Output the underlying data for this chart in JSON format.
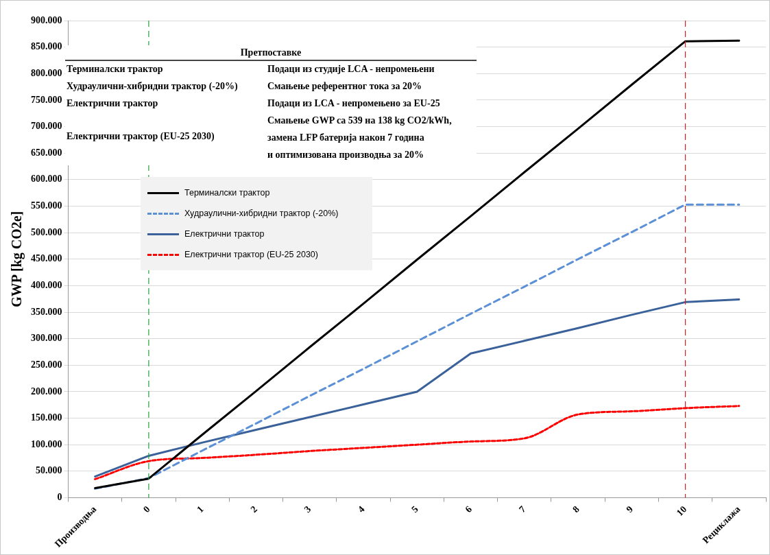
{
  "chart_data": {
    "type": "line",
    "ylabel": "GWP [kg CO2e]",
    "categories": [
      "Производња",
      "0",
      "1",
      "2",
      "3",
      "4",
      "5",
      "6",
      "7",
      "8",
      "9",
      "10",
      "Рециклажа"
    ],
    "series": [
      {
        "name": "Терминалски трактор",
        "color": "#000000",
        "line_style": "solid",
        "values": [
          18000,
          36000,
          119000,
          201000,
          284000,
          366000,
          449000,
          531000,
          614000,
          696000,
          779000,
          861000,
          862000
        ]
      },
      {
        "name": "Худраулични-хибридни трактор (-20%)",
        "color": "#5b8fd6",
        "line_style": "dashed",
        "values": [
          17000,
          37000,
          89000,
          140000,
          192000,
          243000,
          295000,
          347000,
          398000,
          450000,
          501000,
          553000,
          553000
        ]
      },
      {
        "name": "Електрични трактор",
        "color": "#3a6199",
        "line_style": "solid",
        "values": [
          40000,
          79000,
          104000,
          128000,
          152000,
          176000,
          200000,
          272000,
          296000,
          320000,
          345000,
          369000,
          374000
        ]
      },
      {
        "name": "Електрични трактор (EU-25 2030)",
        "color": "#ff0000",
        "line_style": "dotted",
        "values": [
          35000,
          69000,
          75000,
          81000,
          88000,
          94000,
          100000,
          106000,
          112000,
          157000,
          163000,
          169000,
          173000
        ]
      }
    ],
    "ylim": [
      0,
      900000
    ],
    "yticks": [
      0,
      {
        "value": 50000,
        "label": "50.000"
      },
      {
        "value": 100000,
        "label": "100.000"
      },
      {
        "value": 150000,
        "label": "150.000"
      },
      {
        "value": 200000,
        "label": "200.000"
      },
      {
        "value": 250000,
        "label": "250.000"
      },
      {
        "value": 300000,
        "label": "300.000"
      },
      {
        "value": 350000,
        "label": "350.000"
      },
      {
        "value": 400000,
        "label": "400.000"
      },
      {
        "value": 450000,
        "label": "450.000"
      },
      {
        "value": 500000,
        "label": "500.000"
      },
      {
        "value": 550000,
        "label": "550.000"
      },
      {
        "value": 600000,
        "label": "600.000"
      },
      {
        "value": 650000,
        "label": "650.000"
      },
      {
        "value": 700000,
        "label": "700.000"
      },
      {
        "value": 750000,
        "label": "750.000"
      },
      {
        "value": 800000,
        "label": "800.000"
      },
      {
        "value": 850000,
        "label": "850.000"
      },
      {
        "value": 900000,
        "label": "900.000"
      }
    ],
    "ref_lines": [
      {
        "axis": "x",
        "value": "0",
        "color": "#22a33a",
        "line_style": "dashed"
      },
      {
        "axis": "x",
        "value": "10",
        "color": "#d42020",
        "line_style": "dashed"
      }
    ],
    "annotations": [
      "Претпоставке",
      "Терминалски трактор",
      "Худраулични-хибридни трактор (-20%)",
      "Електрични трактор",
      "Електрични трактор (EU-25 2030)",
      "Подаци из студије LCA - непромењени",
      "Смањење референтног тока за 20%",
      "Подаци из LCA - непромењено за EU-25",
      "Смањење GWP са 539 на 138 kg CO2/kWh,",
      "замена LFP батерија након 7 година",
      "и оптимизована производња за 20%"
    ],
    "grid": "y",
    "legend": "top left",
    "marker": "none"
  }
}
